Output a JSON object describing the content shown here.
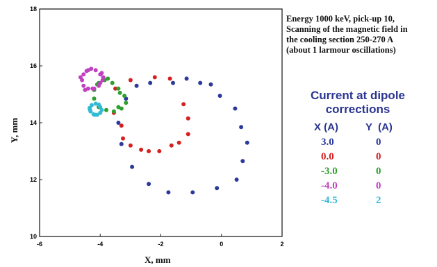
{
  "chart_data": {
    "type": "scatter",
    "xlabel": "X, mm",
    "ylabel": "Y, mm",
    "xlim": [
      -6,
      2
    ],
    "ylim": [
      10,
      18
    ],
    "xticks": [
      "-6",
      "-4",
      "-2",
      "0",
      "2"
    ],
    "yticks": [
      "10",
      "12",
      "14",
      "16",
      "18"
    ],
    "annotation": [
      "Energy 1000 keV, pick-up 10,",
      "Scanning of the magnetic field in",
      "the cooling section 250-270 A",
      "(about 1 larmour oscillations)"
    ],
    "legend": {
      "title": [
        "Current at dipole",
        "corrections"
      ],
      "col_x": "X (A)",
      "col_y": "Y  (A)",
      "rows": [
        {
          "x": "3.0",
          "y": "0",
          "color": "#2b3a9a"
        },
        {
          "x": "0.0",
          "y": "0",
          "color": "#d42020"
        },
        {
          "x": "-3.0",
          "y": "0",
          "color": "#2ea02e"
        },
        {
          "x": "-4.0",
          "y": "0",
          "color": "#c040c0"
        },
        {
          "x": "-4.5",
          "y": "2",
          "color": "#33bbd6"
        }
      ]
    },
    "series": [
      {
        "color": "#2b3a9a",
        "points": [
          [
            -1.6,
            15.4
          ],
          [
            -1.15,
            15.55
          ],
          [
            -0.7,
            15.4
          ],
          [
            -0.35,
            15.35
          ],
          [
            -0.05,
            14.95
          ],
          [
            0.45,
            14.5
          ],
          [
            0.65,
            13.85
          ],
          [
            0.85,
            13.3
          ],
          [
            0.7,
            12.65
          ],
          [
            0.5,
            12.0
          ],
          [
            -0.15,
            11.7
          ],
          [
            -0.95,
            11.55
          ],
          [
            -1.75,
            11.55
          ],
          [
            -2.4,
            11.85
          ],
          [
            -2.95,
            12.45
          ],
          [
            -3.3,
            13.25
          ],
          [
            -3.4,
            14.0
          ],
          [
            -3.15,
            14.85
          ],
          [
            -2.8,
            15.3
          ],
          [
            -2.35,
            15.4
          ]
        ]
      },
      {
        "color": "#d42020",
        "points": [
          [
            -2.2,
            15.6
          ],
          [
            -1.7,
            15.55
          ],
          [
            -3.0,
            15.5
          ],
          [
            -3.5,
            15.2
          ],
          [
            -1.25,
            14.65
          ],
          [
            -3.55,
            14.35
          ],
          [
            -1.1,
            14.15
          ],
          [
            -3.3,
            13.9
          ],
          [
            -1.1,
            13.6
          ],
          [
            -3.25,
            13.45
          ],
          [
            -1.4,
            13.3
          ],
          [
            -3.0,
            13.2
          ],
          [
            -1.65,
            13.2
          ],
          [
            -2.65,
            13.05
          ],
          [
            -2.05,
            13.0
          ],
          [
            -2.4,
            13.0
          ]
        ]
      },
      {
        "color": "#2ea02e",
        "points": [
          [
            -3.85,
            15.5
          ],
          [
            -3.6,
            15.4
          ],
          [
            -3.4,
            15.2
          ],
          [
            -3.2,
            14.95
          ],
          [
            -3.15,
            14.7
          ],
          [
            -3.3,
            14.5
          ],
          [
            -3.55,
            14.4
          ],
          [
            -3.8,
            14.45
          ],
          [
            -4.05,
            14.55
          ],
          [
            -4.2,
            14.85
          ],
          [
            -4.2,
            15.15
          ],
          [
            -4.05,
            15.4
          ],
          [
            -3.75,
            15.55
          ],
          [
            -3.35,
            15.05
          ],
          [
            -3.4,
            14.55
          ],
          [
            -4.1,
            15.35
          ]
        ]
      },
      {
        "color": "#c040c0",
        "points": [
          [
            -4.0,
            15.4
          ],
          [
            -3.9,
            15.6
          ],
          [
            -3.95,
            15.75
          ],
          [
            -4.15,
            15.85
          ],
          [
            -4.4,
            15.85
          ],
          [
            -4.55,
            15.7
          ],
          [
            -4.6,
            15.5
          ],
          [
            -4.55,
            15.3
          ],
          [
            -4.4,
            15.2
          ],
          [
            -4.2,
            15.2
          ],
          [
            -4.05,
            15.3
          ],
          [
            -4.3,
            15.9
          ],
          [
            -4.5,
            15.15
          ],
          [
            -4.65,
            15.6
          ],
          [
            -3.92,
            15.5
          ],
          [
            -4.0,
            15.7
          ],
          [
            -4.25,
            15.2
          ],
          [
            -4.45,
            15.82
          ]
        ]
      },
      {
        "color": "#33bbd6",
        "points": [
          [
            -4.0,
            14.55
          ],
          [
            -3.95,
            14.45
          ],
          [
            -4.0,
            14.35
          ],
          [
            -4.1,
            14.28
          ],
          [
            -4.22,
            14.3
          ],
          [
            -4.32,
            14.4
          ],
          [
            -4.35,
            14.52
          ],
          [
            -4.28,
            14.62
          ],
          [
            -4.15,
            14.67
          ],
          [
            -4.05,
            14.64
          ],
          [
            -4.34,
            14.46
          ],
          [
            -4.18,
            14.28
          ]
        ]
      }
    ]
  }
}
